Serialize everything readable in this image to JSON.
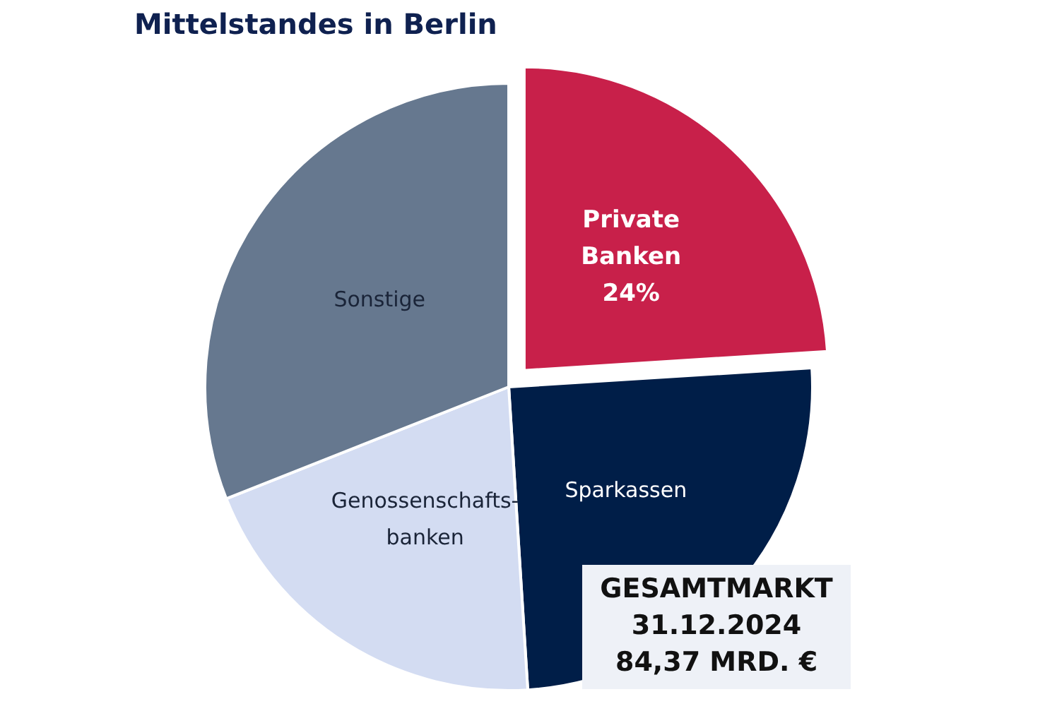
{
  "chart_data": {
    "type": "pie",
    "title": "Mittelstandes in Berlin",
    "categories": [
      "Private Banken",
      "Sparkassen",
      "Genossenschafts-banken",
      "Sonstige"
    ],
    "values": [
      24,
      25,
      20,
      31
    ],
    "colors": [
      "#c8204a",
      "#001e48",
      "#d3dcf2",
      "#66788f"
    ],
    "value_labels": [
      "24%",
      null,
      null,
      null
    ],
    "annotations": [
      "GESAMTMARKT\n31.12.2024\n84,37 MRD. €"
    ],
    "legend": false
  }
}
